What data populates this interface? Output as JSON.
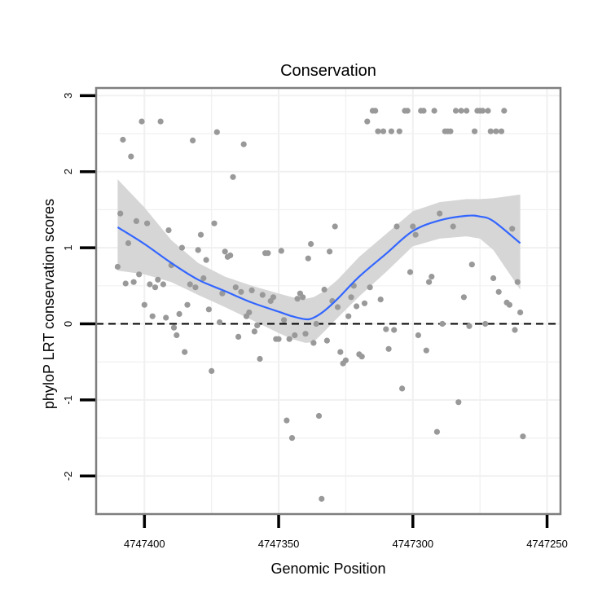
{
  "chart_data": {
    "type": "scatter",
    "title": "Conservation",
    "xlabel": "Genomic Position",
    "ylabel": "phyloP LRT conservation scores",
    "x_reversed": true,
    "xlim": [
      4747418,
      4747245
    ],
    "ylim": [
      -2.5,
      3.1
    ],
    "x_ticks": [
      4747400,
      4747350,
      4747300,
      4747250
    ],
    "x_tick_labels": [
      "4747400",
      "4747350",
      "4747300",
      "4747250"
    ],
    "y_ticks": [
      -2,
      -1,
      0,
      1,
      2,
      3
    ],
    "y_tick_labels": [
      "-2",
      "-1",
      "0",
      "1",
      "2",
      "3"
    ],
    "reference_line": {
      "y": 0,
      "style": "dashed"
    },
    "colors": {
      "points": "#999999",
      "smooth_line": "#3366ff",
      "ribbon": "#d6d6d6",
      "grid": "#f0f0f0",
      "panel_border": "#7f7f7f",
      "reference_line": "#000000"
    },
    "points": [
      [
        4747410,
        0.75
      ],
      [
        4747409,
        1.45
      ],
      [
        4747408,
        2.42
      ],
      [
        4747407,
        0.53
      ],
      [
        4747406,
        1.06
      ],
      [
        4747405,
        2.2
      ],
      [
        4747404,
        0.55
      ],
      [
        4747403,
        1.35
      ],
      [
        4747402,
        0.65
      ],
      [
        4747401,
        2.66
      ],
      [
        4747400,
        0.25
      ],
      [
        4747399,
        1.32
      ],
      [
        4747398,
        0.52
      ],
      [
        4747397,
        0.1
      ],
      [
        4747396,
        0.48
      ],
      [
        4747395,
        0.58
      ],
      [
        4747394,
        2.66
      ],
      [
        4747393,
        0.52
      ],
      [
        4747392,
        0.08
      ],
      [
        4747391,
        1.23
      ],
      [
        4747390,
        0.77
      ],
      [
        4747389,
        -0.05
      ],
      [
        4747388,
        -0.15
      ],
      [
        4747387,
        0.13
      ],
      [
        4747386,
        1.0
      ],
      [
        4747385,
        -0.37
      ],
      [
        4747384,
        0.25
      ],
      [
        4747383,
        0.52
      ],
      [
        4747382,
        2.41
      ],
      [
        4747381,
        0.48
      ],
      [
        4747380,
        0.97
      ],
      [
        4747379,
        1.17
      ],
      [
        4747378,
        0.6
      ],
      [
        4747377,
        0.84
      ],
      [
        4747376,
        0.19
      ],
      [
        4747375,
        -0.62
      ],
      [
        4747374,
        1.32
      ],
      [
        4747373,
        2.52
      ],
      [
        4747372,
        0.02
      ],
      [
        4747371,
        0.4
      ],
      [
        4747370,
        0.95
      ],
      [
        4747369,
        0.88
      ],
      [
        4747368,
        0.9
      ],
      [
        4747367,
        1.93
      ],
      [
        4747366,
        0.48
      ],
      [
        4747365,
        -0.17
      ],
      [
        4747364,
        0.42
      ],
      [
        4747363,
        2.36
      ],
      [
        4747362,
        0.1
      ],
      [
        4747361,
        0.15
      ],
      [
        4747360,
        0.44
      ],
      [
        4747359,
        -0.1
      ],
      [
        4747358,
        -0.02
      ],
      [
        4747357,
        -0.46
      ],
      [
        4747356,
        0.38
      ],
      [
        4747355,
        0.93
      ],
      [
        4747354,
        0.93
      ],
      [
        4747353,
        0.3
      ],
      [
        4747352,
        0.35
      ],
      [
        4747351,
        -0.2
      ],
      [
        4747350,
        -0.2
      ],
      [
        4747349,
        0.96
      ],
      [
        4747348,
        0.05
      ],
      [
        4747347,
        -1.27
      ],
      [
        4747346,
        -0.2
      ],
      [
        4747345,
        -1.5
      ],
      [
        4747344,
        -0.15
      ],
      [
        4747343,
        0.33
      ],
      [
        4747342,
        0.4
      ],
      [
        4747341,
        0.35
      ],
      [
        4747340,
        -0.13
      ],
      [
        4747339,
        0.86
      ],
      [
        4747338,
        1.05
      ],
      [
        4747337,
        -0.25
      ],
      [
        4747336,
        0.0
      ],
      [
        4747335,
        -1.21
      ],
      [
        4747334,
        -2.3
      ],
      [
        4747333,
        0.45
      ],
      [
        4747332,
        -0.22
      ],
      [
        4747331,
        0.95
      ],
      [
        4747330,
        0.3
      ],
      [
        4747329,
        1.28
      ],
      [
        4747328,
        0.22
      ],
      [
        4747327,
        -0.37
      ],
      [
        4747326,
        -0.52
      ],
      [
        4747325,
        -0.48
      ],
      [
        4747324,
        0.1
      ],
      [
        4747323,
        0.35
      ],
      [
        4747322,
        0.5
      ],
      [
        4747321,
        0.23
      ],
      [
        4747320,
        -0.4
      ],
      [
        4747319,
        -0.43
      ],
      [
        4747318,
        0.27
      ],
      [
        4747317,
        2.66
      ],
      [
        4747316,
        0.48
      ],
      [
        4747315,
        2.8
      ],
      [
        4747314,
        2.8
      ],
      [
        4747313,
        2.53
      ],
      [
        4747312,
        0.32
      ],
      [
        4747311,
        2.53
      ],
      [
        4747310,
        -0.07
      ],
      [
        4747309,
        -0.33
      ],
      [
        4747308,
        2.53
      ],
      [
        4747307,
        -0.08
      ],
      [
        4747306,
        1.28
      ],
      [
        4747305,
        2.53
      ],
      [
        4747304,
        -0.85
      ],
      [
        4747303,
        2.8
      ],
      [
        4747302,
        2.8
      ],
      [
        4747301,
        0.68
      ],
      [
        4747300,
        1.28
      ],
      [
        4747299,
        1.17
      ],
      [
        4747298,
        -0.15
      ],
      [
        4747297,
        2.8
      ],
      [
        4747296,
        2.8
      ],
      [
        4747295,
        -0.35
      ],
      [
        4747294,
        0.55
      ],
      [
        4747293,
        0.62
      ],
      [
        4747292,
        2.8
      ],
      [
        4747291,
        -1.42
      ],
      [
        4747290,
        1.45
      ],
      [
        4747289,
        0.0
      ],
      [
        4747288,
        2.53
      ],
      [
        4747287,
        2.53
      ],
      [
        4747286,
        2.53
      ],
      [
        4747285,
        1.28
      ],
      [
        4747284,
        2.8
      ],
      [
        4747283,
        -1.03
      ],
      [
        4747282,
        2.8
      ],
      [
        4747281,
        0.35
      ],
      [
        4747280,
        2.8
      ],
      [
        4747279,
        -0.03
      ],
      [
        4747278,
        0.78
      ],
      [
        4747277,
        2.53
      ],
      [
        4747276,
        2.8
      ],
      [
        4747275,
        2.8
      ],
      [
        4747274,
        2.8
      ],
      [
        4747273,
        0.0
      ],
      [
        4747272,
        2.8
      ],
      [
        4747271,
        2.53
      ],
      [
        4747270,
        0.6
      ],
      [
        4747269,
        2.53
      ],
      [
        4747268,
        0.42
      ],
      [
        4747267,
        2.53
      ],
      [
        4747266,
        2.8
      ],
      [
        4747265,
        0.28
      ],
      [
        4747264,
        0.25
      ],
      [
        4747263,
        1.25
      ],
      [
        4747262,
        -0.08
      ],
      [
        4747261,
        0.55
      ],
      [
        4747260,
        0.15
      ],
      [
        4747259,
        -1.48
      ]
    ],
    "smooth": {
      "x": [
        4747410,
        4747400,
        4747390,
        4747380,
        4747370,
        4747360,
        4747350,
        4747345,
        4747340,
        4747337,
        4747333,
        4747328,
        4747320,
        4747310,
        4747300,
        4747290,
        4747280,
        4747275,
        4747270,
        4747260
      ],
      "y": [
        1.27,
        1.05,
        0.8,
        0.58,
        0.43,
        0.28,
        0.16,
        0.1,
        0.06,
        0.08,
        0.17,
        0.33,
        0.62,
        0.92,
        1.22,
        1.36,
        1.42,
        1.41,
        1.35,
        1.06
      ],
      "lower": [
        0.7,
        0.65,
        0.55,
        0.38,
        0.22,
        0.05,
        -0.12,
        -0.2,
        -0.25,
        -0.24,
        -0.1,
        0.08,
        0.36,
        0.68,
        1.02,
        1.12,
        1.15,
        1.12,
        0.97,
        0.45
      ],
      "upper": [
        1.9,
        1.53,
        1.1,
        0.8,
        0.62,
        0.5,
        0.4,
        0.35,
        0.33,
        0.35,
        0.43,
        0.58,
        0.88,
        1.18,
        1.48,
        1.6,
        1.64,
        1.64,
        1.65,
        1.7
      ]
    }
  }
}
